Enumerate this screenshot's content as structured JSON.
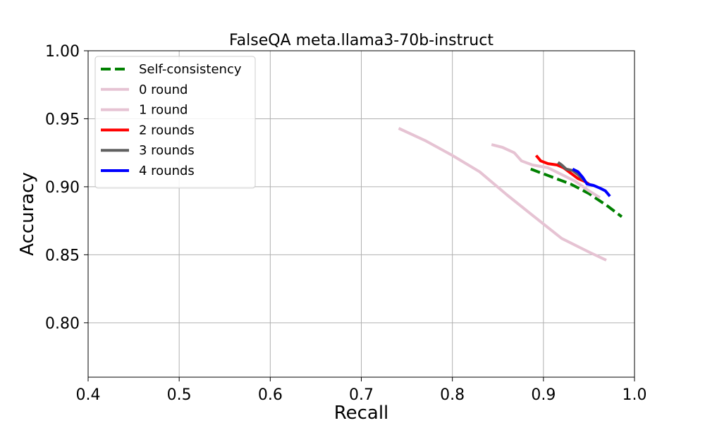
{
  "chart_data": {
    "type": "line",
    "title": "FalseQA meta.llama3-70b-instruct",
    "xlabel": "Recall",
    "ylabel": "Accuracy",
    "xlim": [
      0.4,
      1.0
    ],
    "ylim": [
      0.76,
      1.0
    ],
    "x_ticks": [
      "0.4",
      "0.5",
      "0.6",
      "0.7",
      "0.8",
      "0.9",
      "1.0"
    ],
    "y_ticks": [
      "0.80",
      "0.85",
      "0.90",
      "0.95",
      "1.00"
    ],
    "grid": true,
    "legend_position": "upper-left",
    "series": [
      {
        "name": "Self-consistency",
        "color": "#008000",
        "dash": "dashed",
        "points": [
          [
            0.886,
            0.913
          ],
          [
            0.91,
            0.907
          ],
          [
            0.93,
            0.902
          ],
          [
            0.95,
            0.895
          ],
          [
            0.97,
            0.886
          ],
          [
            0.986,
            0.878
          ]
        ]
      },
      {
        "name": "0 round",
        "color": "#e6c3d3",
        "dash": "solid",
        "points": [
          [
            0.741,
            0.943
          ],
          [
            0.77,
            0.934
          ],
          [
            0.8,
            0.923
          ],
          [
            0.83,
            0.911
          ],
          [
            0.86,
            0.894
          ],
          [
            0.89,
            0.878
          ],
          [
            0.92,
            0.862
          ],
          [
            0.95,
            0.852
          ],
          [
            0.969,
            0.846
          ]
        ]
      },
      {
        "name": "1 round",
        "color": "#e6c3d3",
        "dash": "solid",
        "points": [
          [
            0.843,
            0.931
          ],
          [
            0.855,
            0.929
          ],
          [
            0.868,
            0.925
          ],
          [
            0.876,
            0.919
          ],
          [
            0.888,
            0.916
          ],
          [
            0.905,
            0.914
          ],
          [
            0.92,
            0.909
          ],
          [
            0.935,
            0.904
          ],
          [
            0.95,
            0.897
          ],
          [
            0.962,
            0.892
          ]
        ]
      },
      {
        "name": "2 rounds",
        "color": "#ff0000",
        "dash": "solid",
        "points": [
          [
            0.892,
            0.923
          ],
          [
            0.897,
            0.919
          ],
          [
            0.905,
            0.917
          ],
          [
            0.915,
            0.916
          ],
          [
            0.922,
            0.914
          ],
          [
            0.93,
            0.91
          ],
          [
            0.938,
            0.906
          ],
          [
            0.945,
            0.904
          ],
          [
            0.95,
            0.902
          ]
        ]
      },
      {
        "name": "3 rounds",
        "color": "#606060",
        "dash": "solid",
        "points": [
          [
            0.916,
            0.918
          ],
          [
            0.92,
            0.916
          ],
          [
            0.925,
            0.913
          ],
          [
            0.932,
            0.912
          ],
          [
            0.938,
            0.909
          ],
          [
            0.944,
            0.905
          ]
        ]
      },
      {
        "name": "4 rounds",
        "color": "#0000ff",
        "dash": "solid",
        "points": [
          [
            0.932,
            0.913
          ],
          [
            0.938,
            0.911
          ],
          [
            0.943,
            0.907
          ],
          [
            0.948,
            0.902
          ],
          [
            0.955,
            0.901
          ],
          [
            0.962,
            0.899
          ],
          [
            0.968,
            0.897
          ],
          [
            0.973,
            0.893
          ]
        ]
      }
    ]
  }
}
